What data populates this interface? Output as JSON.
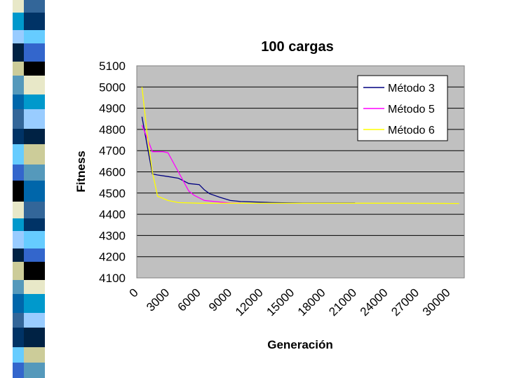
{
  "chart_data": {
    "type": "line",
    "title": "100 cargas",
    "xlabel": "Generación",
    "ylabel": "Fitness",
    "xlim": [
      0,
      31500
    ],
    "ylim": [
      4100,
      5100
    ],
    "y_ticks": [
      "5100",
      "5000",
      "4900",
      "4800",
      "4700",
      "4600",
      "4500",
      "4400",
      "4300",
      "4200",
      "4100"
    ],
    "x_ticks": [
      "0",
      "3000",
      "6000",
      "9000",
      "12000",
      "15000",
      "18000",
      "21000",
      "24000",
      "27000",
      "30000"
    ],
    "grid": true,
    "legend_position": "top-right",
    "series": [
      {
        "name": "Método 3",
        "color": "#000080",
        "x": [
          500,
          1500,
          2000,
          3000,
          4000,
          5000,
          6000,
          6500,
          7000,
          8000,
          9000,
          10000,
          13000,
          14000,
          16000,
          20000,
          21000
        ],
        "y": [
          4860,
          4590,
          4585,
          4578,
          4570,
          4545,
          4540,
          4515,
          4497,
          4480,
          4465,
          4460,
          4455,
          4454,
          4453,
          4453,
          4453
        ]
      },
      {
        "name": "Método 5",
        "color": "#ff00ff",
        "x": [
          500,
          1000,
          1500,
          2500,
          3000,
          4000,
          5000,
          5500,
          6500,
          7500,
          9000,
          10000
        ],
        "y": [
          4820,
          4760,
          4695,
          4695,
          4690,
          4600,
          4510,
          4490,
          4465,
          4460,
          4453,
          4453
        ]
      },
      {
        "name": "Método 6",
        "color": "#ffff00",
        "x": [
          500,
          1000,
          1500,
          2000,
          3000,
          4000,
          6000,
          10000,
          15000,
          20000,
          25000,
          30000,
          31000
        ],
        "y": [
          5000,
          4780,
          4600,
          4485,
          4465,
          4455,
          4452,
          4452,
          4452,
          4452,
          4452,
          4451,
          4451
        ]
      }
    ]
  }
}
